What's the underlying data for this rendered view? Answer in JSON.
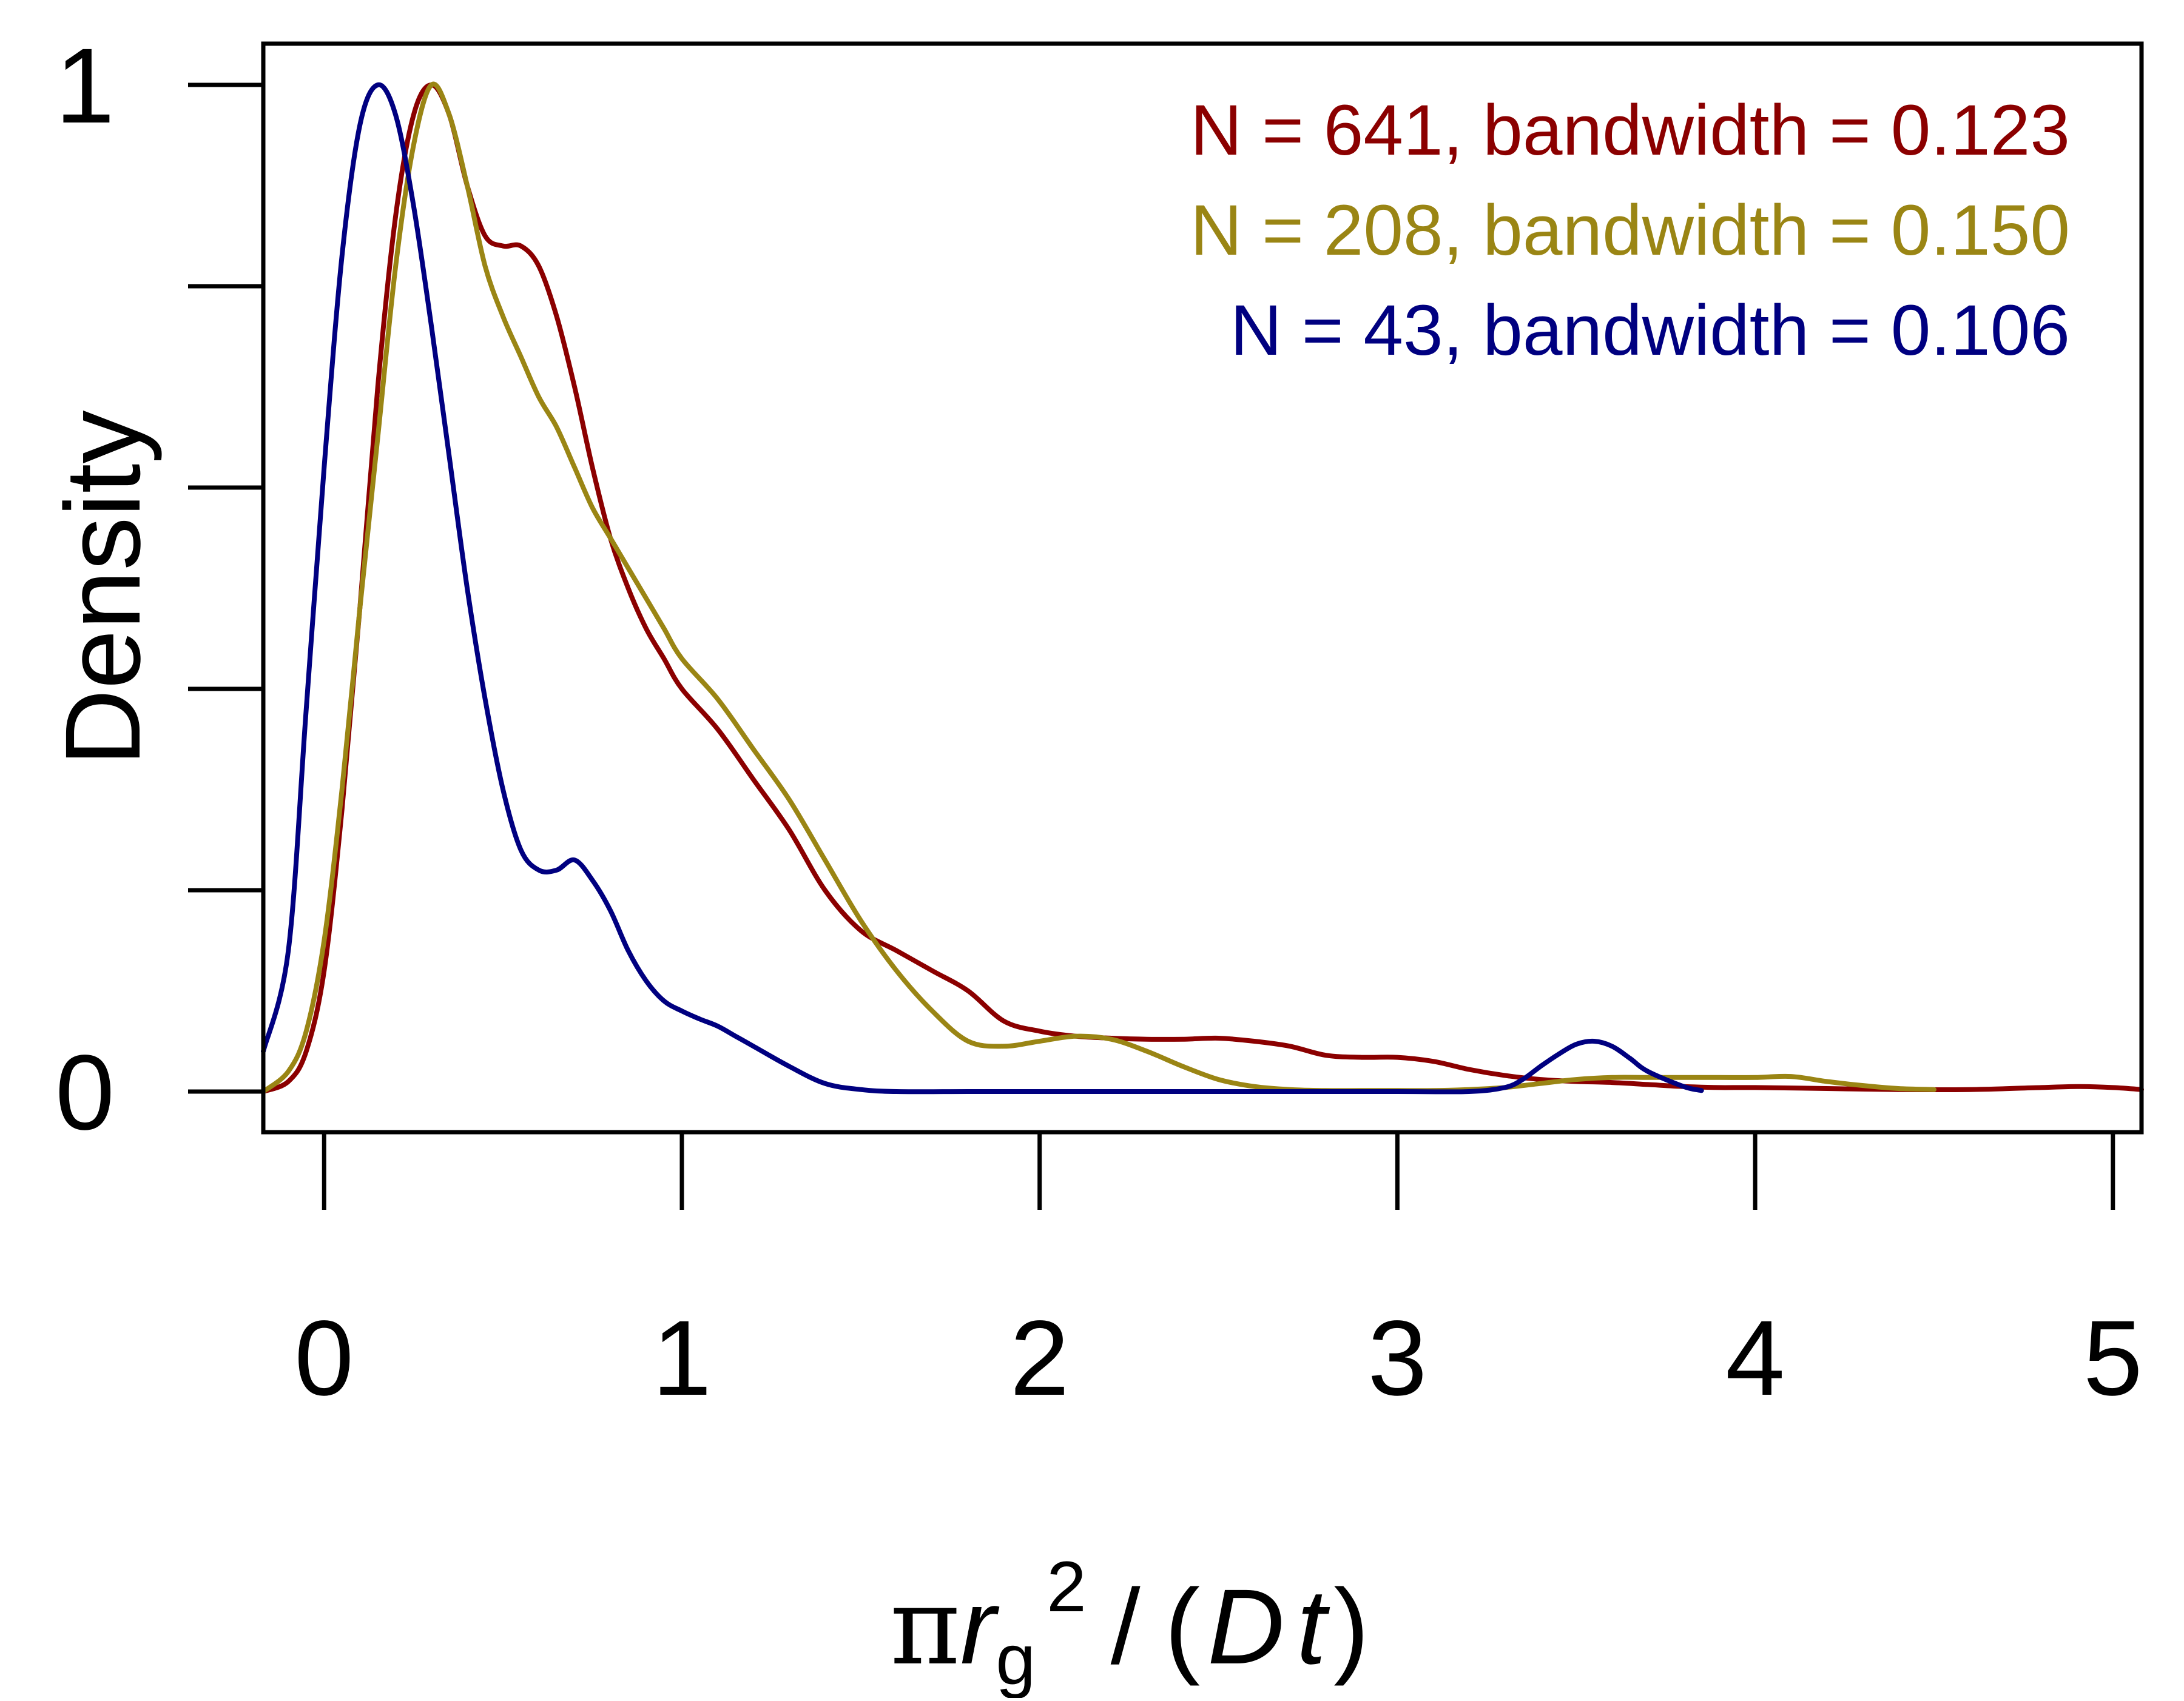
{
  "chart_data": {
    "type": "line",
    "title": "",
    "xlabel": {
      "pi": "π",
      "r": "r",
      "sub": "g",
      "sup": "2",
      "slash": "/",
      "open_paren": "(",
      "D": "D",
      "t": "t",
      "close_paren": ")"
    },
    "ylabel": "Density",
    "xlim": [
      -0.17,
      5.08
    ],
    "ylim": [
      0,
      1
    ],
    "x_ticks": [
      0,
      1,
      2,
      3,
      4,
      5
    ],
    "x_tick_labels": [
      "0",
      "1",
      "2",
      "3",
      "4",
      "5"
    ],
    "y_ticks": [
      0,
      0.2,
      0.4,
      0.6,
      0.8,
      1.0
    ],
    "y_tick_labels": [
      "0",
      "",
      "",
      "",
      "",
      "1"
    ],
    "grid": false,
    "legend_position": "top-right",
    "series": [
      {
        "name": "N = 641, bandwidth = 0.123",
        "color": "#8b0000",
        "x": [
          -0.17,
          -0.1,
          -0.05,
          0.0,
          0.05,
          0.1,
          0.15,
          0.2,
          0.25,
          0.3,
          0.35,
          0.4,
          0.45,
          0.5,
          0.55,
          0.6,
          0.65,
          0.7,
          0.75,
          0.8,
          0.85,
          0.9,
          0.95,
          1.0,
          1.1,
          1.2,
          1.3,
          1.4,
          1.5,
          1.6,
          1.7,
          1.8,
          1.9,
          2.0,
          2.1,
          2.2,
          2.3,
          2.4,
          2.5,
          2.6,
          2.7,
          2.8,
          2.9,
          3.0,
          3.1,
          3.2,
          3.3,
          3.4,
          3.5,
          3.6,
          3.7,
          3.8,
          3.9,
          4.0,
          4.2,
          4.4,
          4.6,
          4.8,
          4.9,
          5.0,
          5.08
        ],
        "values": [
          0.0,
          0.01,
          0.04,
          0.12,
          0.28,
          0.48,
          0.7,
          0.87,
          0.97,
          1.0,
          0.97,
          0.9,
          0.85,
          0.84,
          0.84,
          0.82,
          0.77,
          0.7,
          0.62,
          0.55,
          0.5,
          0.46,
          0.43,
          0.4,
          0.36,
          0.31,
          0.26,
          0.2,
          0.16,
          0.14,
          0.12,
          0.1,
          0.07,
          0.06,
          0.055,
          0.053,
          0.052,
          0.052,
          0.053,
          0.05,
          0.045,
          0.036,
          0.034,
          0.034,
          0.03,
          0.022,
          0.016,
          0.012,
          0.01,
          0.009,
          0.007,
          0.005,
          0.004,
          0.004,
          0.003,
          0.002,
          0.002,
          0.004,
          0.005,
          0.004,
          0.002
        ]
      },
      {
        "name": "N = 208, bandwidth = 0.150",
        "color": "#9a8514",
        "x": [
          -0.17,
          -0.1,
          -0.05,
          0.0,
          0.05,
          0.1,
          0.15,
          0.2,
          0.25,
          0.3,
          0.35,
          0.4,
          0.45,
          0.5,
          0.55,
          0.6,
          0.65,
          0.7,
          0.75,
          0.8,
          0.85,
          0.9,
          0.95,
          1.0,
          1.1,
          1.2,
          1.3,
          1.4,
          1.5,
          1.6,
          1.7,
          1.8,
          1.9,
          2.0,
          2.1,
          2.2,
          2.3,
          2.4,
          2.5,
          2.6,
          2.7,
          2.8,
          2.9,
          3.0,
          3.1,
          3.2,
          3.3,
          3.4,
          3.5,
          3.6,
          3.7,
          3.8,
          3.9,
          4.0,
          4.1,
          4.2,
          4.3,
          4.4,
          4.5
        ],
        "values": [
          0.0,
          0.02,
          0.06,
          0.15,
          0.3,
          0.48,
          0.65,
          0.82,
          0.94,
          1.0,
          0.97,
          0.9,
          0.82,
          0.77,
          0.73,
          0.69,
          0.66,
          0.62,
          0.58,
          0.55,
          0.52,
          0.49,
          0.46,
          0.43,
          0.39,
          0.34,
          0.29,
          0.23,
          0.17,
          0.12,
          0.08,
          0.05,
          0.045,
          0.05,
          0.055,
          0.052,
          0.04,
          0.025,
          0.012,
          0.005,
          0.002,
          0.001,
          0.001,
          0.001,
          0.001,
          0.002,
          0.004,
          0.008,
          0.012,
          0.014,
          0.014,
          0.014,
          0.014,
          0.014,
          0.015,
          0.01,
          0.006,
          0.003,
          0.002
        ]
      },
      {
        "name": "N = 43, bandwidth = 0.106",
        "color": "#000080",
        "x": [
          -0.17,
          -0.1,
          -0.05,
          0.0,
          0.05,
          0.1,
          0.15,
          0.2,
          0.25,
          0.3,
          0.35,
          0.4,
          0.45,
          0.5,
          0.55,
          0.6,
          0.65,
          0.7,
          0.75,
          0.8,
          0.85,
          0.9,
          0.95,
          1.0,
          1.05,
          1.1,
          1.15,
          1.2,
          1.3,
          1.4,
          1.5,
          1.6,
          1.8,
          2.0,
          2.5,
          3.0,
          3.2,
          3.3,
          3.35,
          3.4,
          3.45,
          3.5,
          3.55,
          3.6,
          3.65,
          3.7,
          3.8,
          3.85
        ],
        "values": [
          0.04,
          0.14,
          0.38,
          0.62,
          0.83,
          0.96,
          1.0,
          0.97,
          0.88,
          0.76,
          0.63,
          0.5,
          0.39,
          0.3,
          0.24,
          0.22,
          0.22,
          0.23,
          0.21,
          0.18,
          0.14,
          0.11,
          0.09,
          0.08,
          0.072,
          0.065,
          0.055,
          0.045,
          0.025,
          0.008,
          0.002,
          0.0,
          0.0,
          0.0,
          0.0,
          0.0,
          0.0,
          0.004,
          0.012,
          0.025,
          0.037,
          0.047,
          0.05,
          0.045,
          0.033,
          0.02,
          0.005,
          0.001
        ]
      }
    ]
  }
}
